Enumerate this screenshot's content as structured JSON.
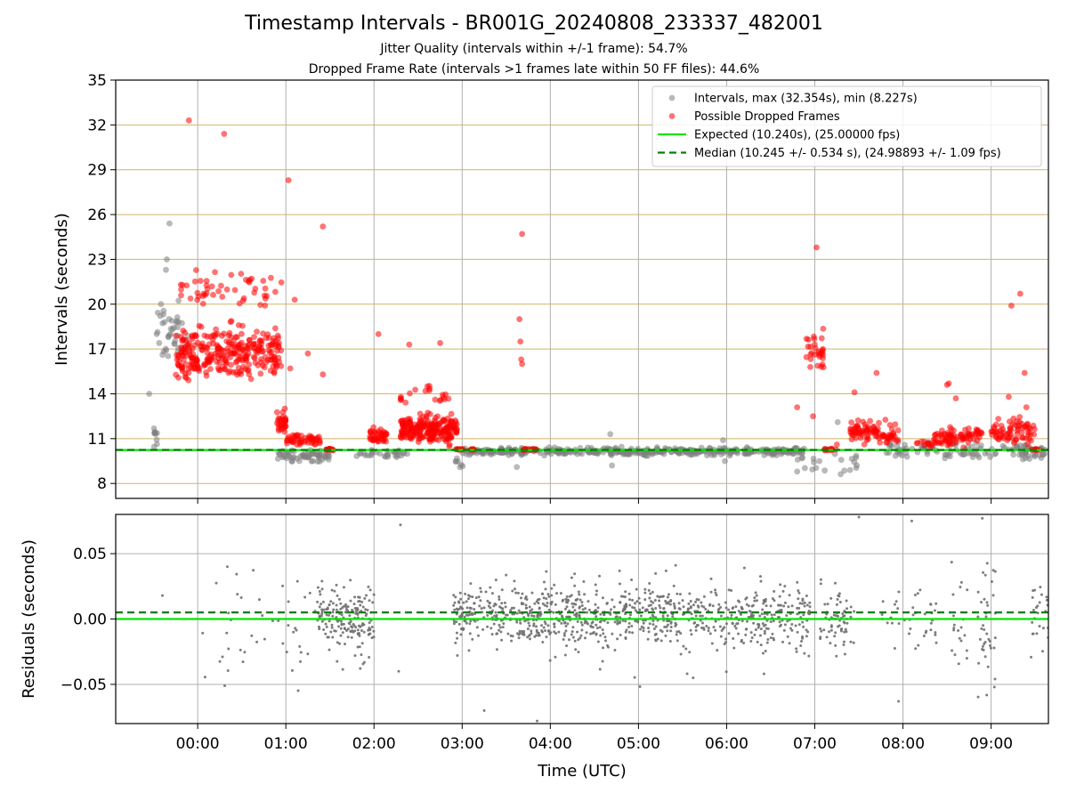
{
  "title": "Timestamp Intervals - BR001G_20240808_233337_482001",
  "subtitle_jitter": "Jitter Quality (intervals within +/-1 frame): 54.7%",
  "subtitle_dropped": "Dropped Frame Rate (intervals >1 frames late within 50 FF files): 44.6%",
  "chart_data": [
    {
      "type": "scatter",
      "panel": "intervals",
      "ylabel": "Intervals (seconds)",
      "xlabel": "",
      "ylim": [
        7,
        35
      ],
      "yticks": [
        "8",
        "11",
        "14",
        "17",
        "20",
        "23",
        "26",
        "29",
        "32",
        "35"
      ],
      "xticks": [
        "00:00",
        "01:00",
        "02:00",
        "03:00",
        "04:00",
        "05:00",
        "06:00",
        "07:00",
        "08:00",
        "09:00"
      ],
      "xlim_hours": [
        -0.93,
        9.65
      ],
      "grid": "horizontal lines at y ticks, vertical lines at x ticks",
      "legend_placement": "upper right",
      "legend": [
        "Intervals, max (32.354s), min (8.227s)",
        "Possible Dropped Frames",
        "Expected (10.240s), (25.00000 fps)",
        "Median (10.245 +/- 0.534 s), (24.98893 +/- 1.09 fps)"
      ],
      "expected_interval": 10.24,
      "median_interval": 10.245,
      "series": [
        {
          "name": "Intervals, max (32.354s), min (8.227s)",
          "color": "#808080",
          "clusters": [
            {
              "x": [
                -0.5,
                -0.1
              ],
              "y": [
                15.0,
                21.0
              ],
              "n": 40
            },
            {
              "x": [
                -0.5,
                -0.45
              ],
              "y": [
                10.2,
                12.2
              ],
              "n": 10
            },
            {
              "x": [
                0.9,
                1.5
              ],
              "y": [
                9.3,
                10.4
              ],
              "n": 60
            },
            {
              "x": [
                1.8,
                2.4
              ],
              "y": [
                9.6,
                10.4
              ],
              "n": 30
            },
            {
              "x": [
                2.9,
                3.05
              ],
              "y": [
                8.4,
                10.4
              ],
              "n": 8
            },
            {
              "x": [
                3.0,
                6.9
              ],
              "y": [
                9.8,
                10.5
              ],
              "n": 420
            },
            {
              "x": [
                6.8,
                7.5
              ],
              "y": [
                8.2,
                10.4
              ],
              "n": 20
            },
            {
              "x": [
                7.8,
                9.65
              ],
              "y": [
                9.2,
                11.0
              ],
              "n": 110
            }
          ],
          "points": [
            {
              "x": -0.55,
              "y": 14.0
            },
            {
              "x": -0.32,
              "y": 25.4
            },
            {
              "x": -0.35,
              "y": 23.0
            },
            {
              "x": -0.36,
              "y": 22.3
            },
            {
              "x": 3.62,
              "y": 9.1
            },
            {
              "x": 4.68,
              "y": 11.3
            },
            {
              "x": 4.7,
              "y": 9.2
            },
            {
              "x": 7.26,
              "y": 12.1
            },
            {
              "x": 6.8,
              "y": 8.8
            },
            {
              "x": 7.4,
              "y": 8.9
            },
            {
              "x": 5.96,
              "y": 10.9
            },
            {
              "x": 5.98,
              "y": 9.5
            }
          ]
        },
        {
          "name": "Possible Dropped Frames",
          "color": "#ff0000",
          "clusters": [
            {
              "x": [
                -0.25,
                0.95
              ],
              "y": [
                14.2,
                19.2
              ],
              "n": 300
            },
            {
              "x": [
                -0.2,
                0.95
              ],
              "y": [
                19.2,
                22.8
              ],
              "n": 50
            },
            {
              "x": [
                0.9,
                1.0
              ],
              "y": [
                11.0,
                13.5
              ],
              "n": 30
            },
            {
              "x": [
                1.0,
                1.4
              ],
              "y": [
                10.3,
                11.6
              ],
              "n": 50
            },
            {
              "x": [
                1.45,
                1.55
              ],
              "y": [
                10.2,
                10.35
              ],
              "n": 15
            },
            {
              "x": [
                1.95,
                2.15
              ],
              "y": [
                10.3,
                12.0
              ],
              "n": 40
            },
            {
              "x": [
                2.3,
                2.95
              ],
              "y": [
                10.3,
                13.0
              ],
              "n": 220
            },
            {
              "x": [
                2.3,
                2.85
              ],
              "y": [
                13.0,
                15.0
              ],
              "n": 20
            },
            {
              "x": [
                2.9,
                3.15
              ],
              "y": [
                10.2,
                10.35
              ],
              "n": 15
            },
            {
              "x": [
                3.68,
                3.85
              ],
              "y": [
                10.2,
                10.35
              ],
              "n": 15
            },
            {
              "x": [
                6.9,
                7.1
              ],
              "y": [
                15.0,
                18.7
              ],
              "n": 30
            },
            {
              "x": [
                7.1,
                7.25
              ],
              "y": [
                10.2,
                10.35
              ],
              "n": 12
            },
            {
              "x": [
                7.4,
                7.95
              ],
              "y": [
                10.3,
                12.5
              ],
              "n": 90
            },
            {
              "x": [
                8.15,
                8.35
              ],
              "y": [
                10.3,
                11.0
              ],
              "n": 10
            },
            {
              "x": [
                8.35,
                8.9
              ],
              "y": [
                10.3,
                12.0
              ],
              "n": 80
            },
            {
              "x": [
                9.0,
                9.5
              ],
              "y": [
                10.3,
                12.8
              ],
              "n": 70
            },
            {
              "x": [
                9.45,
                9.6
              ],
              "y": [
                10.2,
                10.35
              ],
              "n": 10
            }
          ],
          "points": [
            {
              "x": -0.1,
              "y": 32.3
            },
            {
              "x": 0.3,
              "y": 31.4
            },
            {
              "x": 1.03,
              "y": 28.3
            },
            {
              "x": 1.42,
              "y": 25.2
            },
            {
              "x": 3.68,
              "y": 24.7
            },
            {
              "x": 3.65,
              "y": 19.0
            },
            {
              "x": 3.66,
              "y": 17.5
            },
            {
              "x": 3.67,
              "y": 16.3
            },
            {
              "x": 3.68,
              "y": 16.0
            },
            {
              "x": 7.02,
              "y": 23.8
            },
            {
              "x": 1.05,
              "y": 15.7
            },
            {
              "x": 1.1,
              "y": 20.3
            },
            {
              "x": 1.25,
              "y": 16.7
            },
            {
              "x": 1.42,
              "y": 15.3
            },
            {
              "x": 2.05,
              "y": 18.0
            },
            {
              "x": 2.4,
              "y": 17.3
            },
            {
              "x": 2.75,
              "y": 17.4
            },
            {
              "x": 6.8,
              "y": 13.1
            },
            {
              "x": 6.98,
              "y": 12.5
            },
            {
              "x": 7.7,
              "y": 15.4
            },
            {
              "x": 7.25,
              "y": 10.6
            },
            {
              "x": 8.5,
              "y": 14.6
            },
            {
              "x": 8.52,
              "y": 14.7
            },
            {
              "x": 8.6,
              "y": 13.7
            },
            {
              "x": 9.2,
              "y": 13.8
            },
            {
              "x": 9.23,
              "y": 19.9
            },
            {
              "x": 9.33,
              "y": 20.7
            },
            {
              "x": 9.38,
              "y": 15.4
            },
            {
              "x": 9.4,
              "y": 13.1
            },
            {
              "x": 7.45,
              "y": 14.1
            },
            {
              "x": 8.3,
              "y": 10.7
            }
          ]
        }
      ]
    },
    {
      "type": "scatter",
      "panel": "residuals",
      "ylabel": "Residuals (seconds)",
      "xlabel": "Time (UTC)",
      "ylim": [
        -0.08,
        0.08
      ],
      "yticks": [
        "0.05",
        "0.00",
        "−0.05"
      ],
      "xticks": [
        "00:00",
        "01:00",
        "02:00",
        "03:00",
        "04:00",
        "05:00",
        "06:00",
        "07:00",
        "08:00",
        "09:00"
      ],
      "xlim_hours": [
        -0.93,
        9.65
      ],
      "grid": "horizontal and vertical lines at ticks",
      "median_line": 0.005,
      "zero_line": 0.0,
      "series": [
        {
          "name": "",
          "color": "#707070",
          "clusters": [
            {
              "x": [
                0.05,
                2.0
              ],
              "y": [
                -0.07,
                0.06
              ],
              "n": 70
            },
            {
              "x": [
                1.35,
                2.0
              ],
              "y": [
                -0.03,
                0.03
              ],
              "n": 160
            },
            {
              "x": [
                2.9,
                6.95
              ],
              "y": [
                -0.03,
                0.035
              ],
              "n": 780
            },
            {
              "x": [
                2.9,
                6.95
              ],
              "y": [
                -0.06,
                0.06
              ],
              "n": 140
            },
            {
              "x": [
                7.05,
                7.45
              ],
              "y": [
                -0.035,
                0.035
              ],
              "n": 70
            },
            {
              "x": [
                7.75,
                8.4
              ],
              "y": [
                -0.05,
                0.05
              ],
              "n": 40
            },
            {
              "x": [
                8.55,
                8.75
              ],
              "y": [
                -0.05,
                0.05
              ],
              "n": 20
            },
            {
              "x": [
                8.85,
                9.05
              ],
              "y": [
                -0.07,
                0.06
              ],
              "n": 40
            },
            {
              "x": [
                9.45,
                9.65
              ],
              "y": [
                -0.05,
                0.05
              ],
              "n": 25
            }
          ],
          "points": [
            {
              "x": -0.4,
              "y": 0.018
            },
            {
              "x": 2.3,
              "y": 0.072
            },
            {
              "x": 2.28,
              "y": -0.04
            },
            {
              "x": 3.25,
              "y": -0.07
            },
            {
              "x": 3.85,
              "y": -0.078
            },
            {
              "x": 7.5,
              "y": 0.078
            },
            {
              "x": 8.9,
              "y": 0.077
            },
            {
              "x": 8.1,
              "y": 0.075
            },
            {
              "x": 7.95,
              "y": -0.063
            }
          ]
        }
      ]
    }
  ],
  "colors": {
    "expected_line": "#00e600",
    "median_line": "#008000",
    "grid_vertical": "#b0b0b0",
    "grid_horizontal_top": "#d2b469"
  }
}
